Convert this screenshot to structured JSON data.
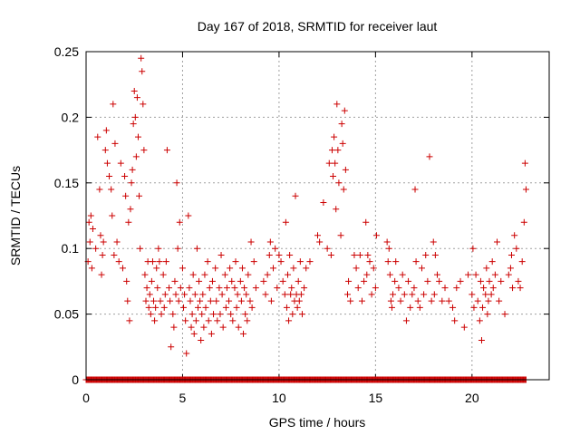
{
  "chart_data": {
    "type": "scatter",
    "title": "Day 167 of 2018, SRMTID for receiver laut",
    "xlabel": "GPS time / hours",
    "ylabel": "SRMTID / TECUs",
    "xlim": [
      0,
      24
    ],
    "ylim": [
      0,
      0.25
    ],
    "x_ticks": [
      "0",
      "5",
      "10",
      "15",
      "20"
    ],
    "y_ticks": [
      "0",
      "0.05",
      "0.1",
      "0.15",
      "0.2",
      "0.25"
    ],
    "grid": true,
    "marker": "plus",
    "color": "#cc0000",
    "x_range_data": [
      0.0,
      22.8
    ],
    "series": [
      {
        "name": "SRMTID",
        "points": [
          [
            0.1,
            0.09
          ],
          [
            0.15,
            0.12
          ],
          [
            0.2,
            0.105
          ],
          [
            0.25,
            0.125
          ],
          [
            0.3,
            0.085
          ],
          [
            0.35,
            0.115
          ],
          [
            0.5,
            0.1
          ],
          [
            0.6,
            0.185
          ],
          [
            0.7,
            0.145
          ],
          [
            0.75,
            0.11
          ],
          [
            0.8,
            0.08
          ],
          [
            0.85,
            0.095
          ],
          [
            0.9,
            0.105
          ],
          [
            1.0,
            0.175
          ],
          [
            1.05,
            0.19
          ],
          [
            1.1,
            0.165
          ],
          [
            1.2,
            0.155
          ],
          [
            1.3,
            0.145
          ],
          [
            1.35,
            0.125
          ],
          [
            1.4,
            0.21
          ],
          [
            1.45,
            0.095
          ],
          [
            1.5,
            0.18
          ],
          [
            1.6,
            0.105
          ],
          [
            1.7,
            0.09
          ],
          [
            1.8,
            0.165
          ],
          [
            1.9,
            0.085
          ],
          [
            2.0,
            0.155
          ],
          [
            2.05,
            0.14
          ],
          [
            2.1,
            0.075
          ],
          [
            2.15,
            0.06
          ],
          [
            2.2,
            0.12
          ],
          [
            2.25,
            0.045
          ],
          [
            2.3,
            0.13
          ],
          [
            2.35,
            0.15
          ],
          [
            2.4,
            0.16
          ],
          [
            2.45,
            0.195
          ],
          [
            2.5,
            0.22
          ],
          [
            2.55,
            0.2
          ],
          [
            2.6,
            0.17
          ],
          [
            2.65,
            0.215
          ],
          [
            2.7,
            0.185
          ],
          [
            2.75,
            0.14
          ],
          [
            2.8,
            0.1
          ],
          [
            2.85,
            0.245
          ],
          [
            2.9,
            0.235
          ],
          [
            2.95,
            0.21
          ],
          [
            3.0,
            0.175
          ],
          [
            3.05,
            0.08
          ],
          [
            3.1,
            0.06
          ],
          [
            3.15,
            0.07
          ],
          [
            3.2,
            0.09
          ],
          [
            3.25,
            0.055
          ],
          [
            3.3,
            0.065
          ],
          [
            3.35,
            0.05
          ],
          [
            3.4,
            0.075
          ],
          [
            3.45,
            0.09
          ],
          [
            3.5,
            0.06
          ],
          [
            3.55,
            0.045
          ],
          [
            3.6,
            0.055
          ],
          [
            3.65,
            0.085
          ],
          [
            3.7,
            0.07
          ],
          [
            3.75,
            0.1
          ],
          [
            3.8,
            0.09
          ],
          [
            3.85,
            0.06
          ],
          [
            3.9,
            0.05
          ],
          [
            4.0,
            0.08
          ],
          [
            4.05,
            0.055
          ],
          [
            4.1,
            0.065
          ],
          [
            4.15,
            0.09
          ],
          [
            4.2,
            0.175
          ],
          [
            4.3,
            0.07
          ],
          [
            4.35,
            0.06
          ],
          [
            4.4,
            0.025
          ],
          [
            4.5,
            0.05
          ],
          [
            4.55,
            0.04
          ],
          [
            4.6,
            0.075
          ],
          [
            4.65,
            0.065
          ],
          [
            4.7,
            0.15
          ],
          [
            4.75,
            0.1
          ],
          [
            4.8,
            0.06
          ],
          [
            4.85,
            0.12
          ],
          [
            4.9,
            0.07
          ],
          [
            5.0,
            0.085
          ],
          [
            5.05,
            0.055
          ],
          [
            5.1,
            0.065
          ],
          [
            5.15,
            0.045
          ],
          [
            5.2,
            0.02
          ],
          [
            5.3,
            0.125
          ],
          [
            5.35,
            0.07
          ],
          [
            5.4,
            0.06
          ],
          [
            5.45,
            0.04
          ],
          [
            5.5,
            0.05
          ],
          [
            5.55,
            0.08
          ],
          [
            5.6,
            0.035
          ],
          [
            5.65,
            0.065
          ],
          [
            5.7,
            0.045
          ],
          [
            5.75,
            0.1
          ],
          [
            5.8,
            0.055
          ],
          [
            5.85,
            0.075
          ],
          [
            5.9,
            0.06
          ],
          [
            5.95,
            0.03
          ],
          [
            6.0,
            0.05
          ],
          [
            6.05,
            0.065
          ],
          [
            6.1,
            0.04
          ],
          [
            6.15,
            0.08
          ],
          [
            6.2,
            0.055
          ],
          [
            6.3,
            0.09
          ],
          [
            6.35,
            0.045
          ],
          [
            6.4,
            0.07
          ],
          [
            6.45,
            0.06
          ],
          [
            6.5,
            0.035
          ],
          [
            6.55,
            0.075
          ],
          [
            6.6,
            0.05
          ],
          [
            6.7,
            0.085
          ],
          [
            6.75,
            0.06
          ],
          [
            6.8,
            0.045
          ],
          [
            6.9,
            0.07
          ],
          [
            6.95,
            0.05
          ],
          [
            7.0,
            0.095
          ],
          [
            7.05,
            0.065
          ],
          [
            7.1,
            0.04
          ],
          [
            7.2,
            0.08
          ],
          [
            7.25,
            0.055
          ],
          [
            7.3,
            0.07
          ],
          [
            7.4,
            0.06
          ],
          [
            7.45,
            0.085
          ],
          [
            7.5,
            0.05
          ],
          [
            7.55,
            0.075
          ],
          [
            7.6,
            0.045
          ],
          [
            7.7,
            0.07
          ],
          [
            7.75,
            0.09
          ],
          [
            7.8,
            0.055
          ],
          [
            7.85,
            0.065
          ],
          [
            7.9,
            0.04
          ],
          [
            8.0,
            0.075
          ],
          [
            8.05,
            0.06
          ],
          [
            8.1,
            0.085
          ],
          [
            8.15,
            0.035
          ],
          [
            8.2,
            0.07
          ],
          [
            8.25,
            0.05
          ],
          [
            8.3,
            0.065
          ],
          [
            8.35,
            0.045
          ],
          [
            8.4,
            0.08
          ],
          [
            8.5,
            0.06
          ],
          [
            8.55,
            0.105
          ],
          [
            8.6,
            0.055
          ],
          [
            8.7,
            0.09
          ],
          [
            8.8,
            0.07
          ],
          [
            9.2,
            0.075
          ],
          [
            9.3,
            0.065
          ],
          [
            9.4,
            0.08
          ],
          [
            9.5,
            0.095
          ],
          [
            9.55,
            0.105
          ],
          [
            9.6,
            0.06
          ],
          [
            9.7,
            0.085
          ],
          [
            9.8,
            0.1
          ],
          [
            9.9,
            0.07
          ],
          [
            10.0,
            0.095
          ],
          [
            10.1,
            0.09
          ],
          [
            10.2,
            0.075
          ],
          [
            10.3,
            0.065
          ],
          [
            10.35,
            0.12
          ],
          [
            10.4,
            0.055
          ],
          [
            10.45,
            0.08
          ],
          [
            10.5,
            0.045
          ],
          [
            10.55,
            0.095
          ],
          [
            10.6,
            0.065
          ],
          [
            10.65,
            0.07
          ],
          [
            10.7,
            0.05
          ],
          [
            10.75,
            0.085
          ],
          [
            10.8,
            0.06
          ],
          [
            10.85,
            0.14
          ],
          [
            10.9,
            0.065
          ],
          [
            10.95,
            0.055
          ],
          [
            11.0,
            0.075
          ],
          [
            11.05,
            0.06
          ],
          [
            11.1,
            0.09
          ],
          [
            11.15,
            0.065
          ],
          [
            11.2,
            0.05
          ],
          [
            11.3,
            0.07
          ],
          [
            11.4,
            0.085
          ],
          [
            11.6,
            0.09
          ],
          [
            12.0,
            0.11
          ],
          [
            12.1,
            0.105
          ],
          [
            12.3,
            0.135
          ],
          [
            12.5,
            0.1
          ],
          [
            12.6,
            0.165
          ],
          [
            12.7,
            0.095
          ],
          [
            12.75,
            0.175
          ],
          [
            12.8,
            0.155
          ],
          [
            12.85,
            0.185
          ],
          [
            12.9,
            0.165
          ],
          [
            12.95,
            0.13
          ],
          [
            13.0,
            0.21
          ],
          [
            13.05,
            0.175
          ],
          [
            13.1,
            0.15
          ],
          [
            13.2,
            0.11
          ],
          [
            13.25,
            0.195
          ],
          [
            13.3,
            0.18
          ],
          [
            13.35,
            0.145
          ],
          [
            13.4,
            0.205
          ],
          [
            13.45,
            0.16
          ],
          [
            13.55,
            0.065
          ],
          [
            13.6,
            0.075
          ],
          [
            13.7,
            0.06
          ],
          [
            13.9,
            0.095
          ],
          [
            14.0,
            0.085
          ],
          [
            14.1,
            0.07
          ],
          [
            14.2,
            0.095
          ],
          [
            14.3,
            0.06
          ],
          [
            14.4,
            0.075
          ],
          [
            14.5,
            0.12
          ],
          [
            14.55,
            0.08
          ],
          [
            14.6,
            0.095
          ],
          [
            14.7,
            0.09
          ],
          [
            14.8,
            0.065
          ],
          [
            14.9,
            0.085
          ],
          [
            15.0,
            0.07
          ],
          [
            15.05,
            0.11
          ],
          [
            15.6,
            0.105
          ],
          [
            15.65,
            0.09
          ],
          [
            15.7,
            0.1
          ],
          [
            15.75,
            0.08
          ],
          [
            15.8,
            0.06
          ],
          [
            15.85,
            0.055
          ],
          [
            15.9,
            0.065
          ],
          [
            16.0,
            0.075
          ],
          [
            16.05,
            0.09
          ],
          [
            16.2,
            0.07
          ],
          [
            16.3,
            0.06
          ],
          [
            16.4,
            0.08
          ],
          [
            16.5,
            0.065
          ],
          [
            16.6,
            0.045
          ],
          [
            16.7,
            0.075
          ],
          [
            16.8,
            0.055
          ],
          [
            16.9,
            0.065
          ],
          [
            17.0,
            0.07
          ],
          [
            17.05,
            0.145
          ],
          [
            17.1,
            0.09
          ],
          [
            17.2,
            0.06
          ],
          [
            17.3,
            0.055
          ],
          [
            17.4,
            0.085
          ],
          [
            17.5,
            0.065
          ],
          [
            17.6,
            0.095
          ],
          [
            17.7,
            0.075
          ],
          [
            17.8,
            0.17
          ],
          [
            17.9,
            0.06
          ],
          [
            18.0,
            0.105
          ],
          [
            18.05,
            0.065
          ],
          [
            18.1,
            0.095
          ],
          [
            18.2,
            0.08
          ],
          [
            18.3,
            0.075
          ],
          [
            18.45,
            0.06
          ],
          [
            18.6,
            0.07
          ],
          [
            18.8,
            0.06
          ],
          [
            19.0,
            0.055
          ],
          [
            19.1,
            0.045
          ],
          [
            19.2,
            0.07
          ],
          [
            19.4,
            0.075
          ],
          [
            19.6,
            0.04
          ],
          [
            19.8,
            0.08
          ],
          [
            20.0,
            0.065
          ],
          [
            20.05,
            0.1
          ],
          [
            20.1,
            0.055
          ],
          [
            20.2,
            0.08
          ],
          [
            20.3,
            0.06
          ],
          [
            20.4,
            0.045
          ],
          [
            20.45,
            0.075
          ],
          [
            20.5,
            0.03
          ],
          [
            20.55,
            0.055
          ],
          [
            20.6,
            0.07
          ],
          [
            20.7,
            0.065
          ],
          [
            20.75,
            0.085
          ],
          [
            20.8,
            0.05
          ],
          [
            20.85,
            0.06
          ],
          [
            20.9,
            0.075
          ],
          [
            21.0,
            0.065
          ],
          [
            21.05,
            0.09
          ],
          [
            21.1,
            0.07
          ],
          [
            21.2,
            0.08
          ],
          [
            21.3,
            0.105
          ],
          [
            21.4,
            0.06
          ],
          [
            21.5,
            0.075
          ],
          [
            21.7,
            0.05
          ],
          [
            21.9,
            0.08
          ],
          [
            22.0,
            0.085
          ],
          [
            22.05,
            0.095
          ],
          [
            22.1,
            0.07
          ],
          [
            22.2,
            0.11
          ],
          [
            22.3,
            0.1
          ],
          [
            22.4,
            0.075
          ],
          [
            22.5,
            0.07
          ],
          [
            22.6,
            0.09
          ],
          [
            22.7,
            0.12
          ],
          [
            22.75,
            0.165
          ],
          [
            22.8,
            0.145
          ]
        ]
      }
    ]
  }
}
